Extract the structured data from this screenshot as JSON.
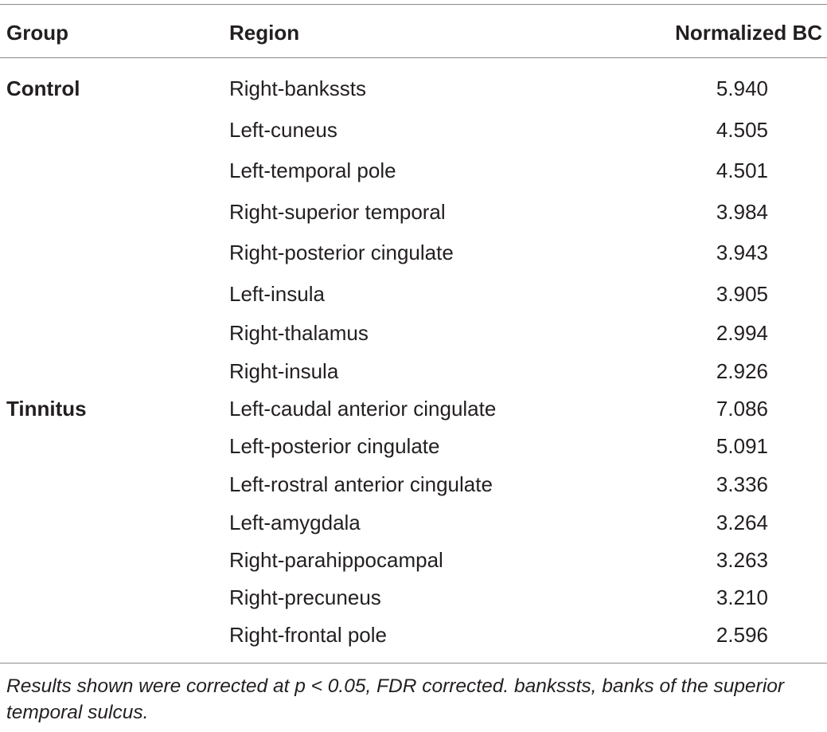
{
  "table": {
    "headers": {
      "group": "Group",
      "region": "Region",
      "bc": "Normalized BC"
    },
    "rows": [
      {
        "group": "Control",
        "region": "Right-bankssts",
        "bc": "5.940"
      },
      {
        "group": "",
        "region": "Left-cuneus",
        "bc": "4.505"
      },
      {
        "group": "",
        "region": "Left-temporal pole",
        "bc": "4.501"
      },
      {
        "group": "",
        "region": "Right-superior temporal",
        "bc": "3.984"
      },
      {
        "group": "",
        "region": "Right-posterior cingulate",
        "bc": "3.943"
      },
      {
        "group": "",
        "region": "Left-insula",
        "bc": "3.905"
      },
      {
        "group": "",
        "region": "Right-thalamus",
        "bc": "2.994"
      },
      {
        "group": "",
        "region": "Right-insula",
        "bc": "2.926"
      },
      {
        "group": "Tinnitus",
        "region": "Left-caudal anterior cingulate",
        "bc": "7.086"
      },
      {
        "group": "",
        "region": "Left-posterior cingulate",
        "bc": "5.091"
      },
      {
        "group": "",
        "region": "Left-rostral anterior cingulate",
        "bc": "3.336"
      },
      {
        "group": "",
        "region": "Left-amygdala",
        "bc": "3.264"
      },
      {
        "group": "",
        "region": "Right-parahippocampal",
        "bc": "3.263"
      },
      {
        "group": "",
        "region": "Right-precuneus",
        "bc": "3.210"
      },
      {
        "group": "",
        "region": "Right-frontal pole",
        "bc": "2.596"
      }
    ],
    "footnote": "Results shown were corrected at p < 0.05, FDR corrected. bankssts, banks of the superior temporal sulcus."
  }
}
